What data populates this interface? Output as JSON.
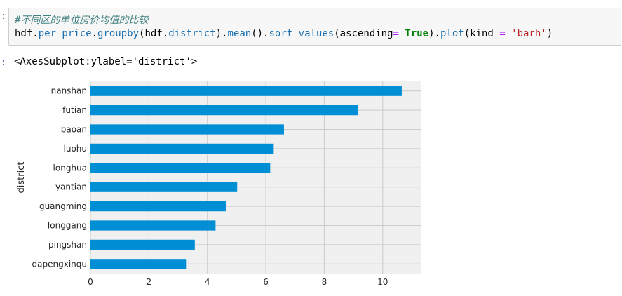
{
  "cell": {
    "in_prompt": ":",
    "out_prompt": ":",
    "comment": "#不同区的单位房价均值的比较",
    "code_tokens": [
      {
        "t": "hdf.",
        "c": "plain"
      },
      {
        "t": "per_price",
        "c": "attr"
      },
      {
        "t": ".",
        "c": "plain"
      },
      {
        "t": "groupby",
        "c": "attr"
      },
      {
        "t": "(hdf.",
        "c": "plain"
      },
      {
        "t": "district",
        "c": "attr"
      },
      {
        "t": ").",
        "c": "plain"
      },
      {
        "t": "mean",
        "c": "attr"
      },
      {
        "t": "().",
        "c": "plain"
      },
      {
        "t": "sort_values",
        "c": "attr"
      },
      {
        "t": "(ascending",
        "c": "plain"
      },
      {
        "t": "=",
        "c": "op"
      },
      {
        "t": " ",
        "c": "plain"
      },
      {
        "t": "True",
        "c": "kw"
      },
      {
        "t": ").",
        "c": "plain"
      },
      {
        "t": "plot",
        "c": "attr"
      },
      {
        "t": "(kind ",
        "c": "plain"
      },
      {
        "t": "=",
        "c": "op"
      },
      {
        "t": " ",
        "c": "plain"
      },
      {
        "t": "'barh'",
        "c": "str"
      },
      {
        "t": ")",
        "c": "plain"
      }
    ]
  },
  "output": {
    "repr": "<AxesSubplot:ylabel='district'>"
  },
  "chart_data": {
    "type": "bar",
    "orientation": "horizontal",
    "categories": [
      "nanshan",
      "futian",
      "baoan",
      "luohu",
      "longhua",
      "yantian",
      "guangming",
      "longgang",
      "pingshan",
      "dapengxinqu"
    ],
    "values": [
      10.65,
      9.15,
      6.62,
      6.27,
      6.15,
      5.02,
      4.63,
      4.28,
      3.57,
      3.27
    ],
    "ylabel": "district",
    "xlabel": "",
    "xlim": [
      0,
      11.3
    ],
    "xticks": [
      0,
      2,
      4,
      6,
      8,
      10
    ],
    "grid": true,
    "bar_color": "#008fd5",
    "background": "#f0f0f0",
    "grid_color": "#cbcbcb"
  }
}
